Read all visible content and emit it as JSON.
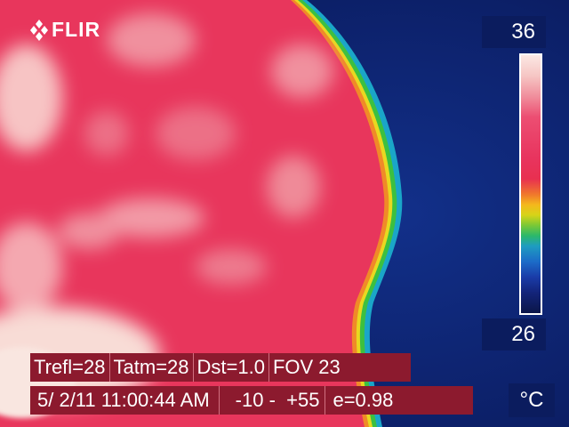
{
  "camera": {
    "brand": "FLIR"
  },
  "scale": {
    "max": "36",
    "min": "26",
    "unit": "°C",
    "palette": "iron-rainbow"
  },
  "parameters": {
    "trefl": "Trefl=28",
    "tatm": "Tatm=28",
    "dst": "Dst=1.0",
    "fov": "FOV 23"
  },
  "status": {
    "datetime": "5/ 2/11 11:00:44 AM",
    "range": "-10 -  +55",
    "emissivity": "e=0.98"
  },
  "colors": {
    "background_cold": "#0b1c5e",
    "subject_warm": "#e8345e",
    "hot_highlight": "#f6d6d6",
    "info_bar": "#8c1a2e"
  }
}
